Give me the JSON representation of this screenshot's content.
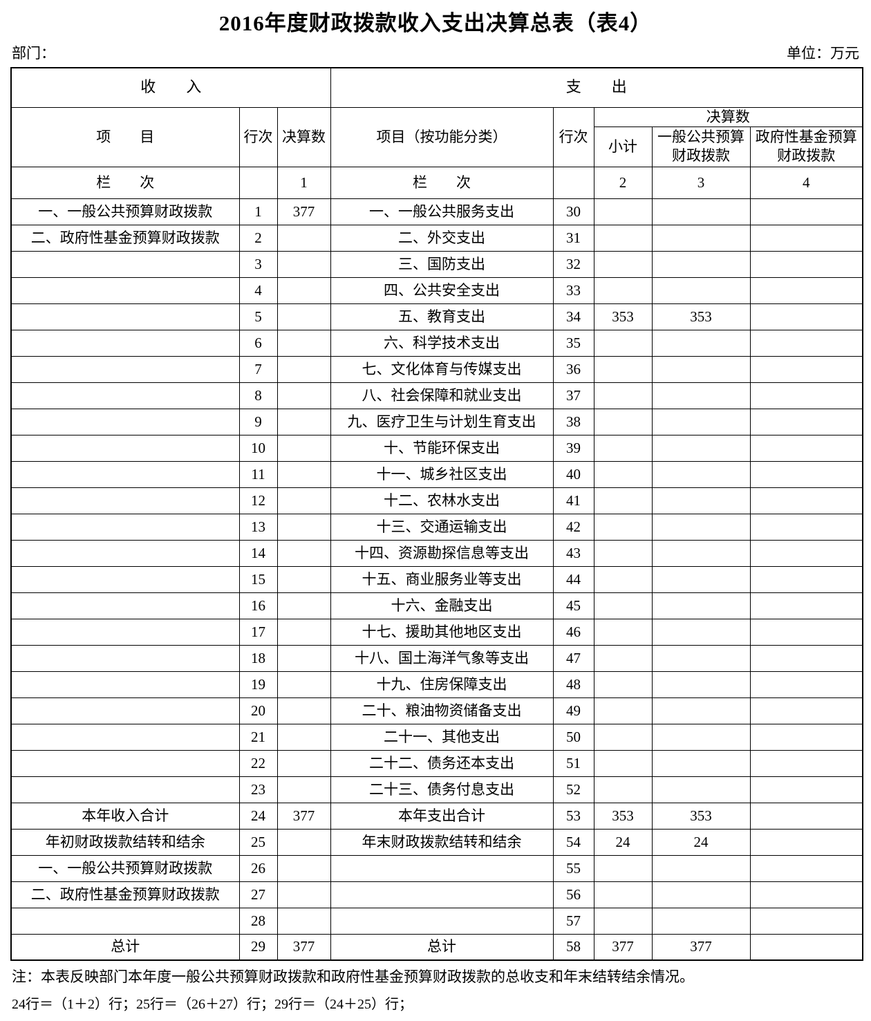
{
  "title": "2016年度财政拨款收入支出决算总表（表4）",
  "department_label": "部门：",
  "unit_label": "单位：万元",
  "table": {
    "income_header": "收　　入",
    "expense_header": "支　　出",
    "col_item": "项　　目",
    "col_row_no": "行次",
    "col_final": "决算数",
    "col_item_func": "项目（按功能分类）",
    "col_subtotal": "小计",
    "col_general": "一般公共预算财政拨款",
    "col_gov_fund": "政府性基金预算财政拨款",
    "lan_ci": "栏　　次",
    "col_nums": [
      "1",
      "2",
      "3",
      "4"
    ],
    "rows": [
      {
        "li": "一、一般公共预算财政拨款",
        "lr": "1",
        "lv": "377",
        "ri": "一、一般公共服务支出",
        "rr": "30",
        "v2": "",
        "v3": "",
        "v4": ""
      },
      {
        "li": "二、政府性基金预算财政拨款",
        "lr": "2",
        "lv": "",
        "ri": "二、外交支出",
        "rr": "31",
        "v2": "",
        "v3": "",
        "v4": ""
      },
      {
        "li": "",
        "lr": "3",
        "lv": "",
        "ri": "三、国防支出",
        "rr": "32",
        "v2": "",
        "v3": "",
        "v4": ""
      },
      {
        "li": "",
        "lr": "4",
        "lv": "",
        "ri": "四、公共安全支出",
        "rr": "33",
        "v2": "",
        "v3": "",
        "v4": ""
      },
      {
        "li": "",
        "lr": "5",
        "lv": "",
        "ri": "五、教育支出",
        "rr": "34",
        "v2": "353",
        "v3": "353",
        "v4": ""
      },
      {
        "li": "",
        "lr": "6",
        "lv": "",
        "ri": "六、科学技术支出",
        "rr": "35",
        "v2": "",
        "v3": "",
        "v4": ""
      },
      {
        "li": "",
        "lr": "7",
        "lv": "",
        "ri": "七、文化体育与传媒支出",
        "rr": "36",
        "v2": "",
        "v3": "",
        "v4": ""
      },
      {
        "li": "",
        "lr": "8",
        "lv": "",
        "ri": "八、社会保障和就业支出",
        "rr": "37",
        "v2": "",
        "v3": "",
        "v4": ""
      },
      {
        "li": "",
        "lr": "9",
        "lv": "",
        "ri": "九、医疗卫生与计划生育支出",
        "rr": "38",
        "v2": "",
        "v3": "",
        "v4": ""
      },
      {
        "li": "",
        "lr": "10",
        "lv": "",
        "ri": "十、节能环保支出",
        "rr": "39",
        "v2": "",
        "v3": "",
        "v4": ""
      },
      {
        "li": "",
        "lr": "11",
        "lv": "",
        "ri": "十一、城乡社区支出",
        "rr": "40",
        "v2": "",
        "v3": "",
        "v4": ""
      },
      {
        "li": "",
        "lr": "12",
        "lv": "",
        "ri": "十二、农林水支出",
        "rr": "41",
        "v2": "",
        "v3": "",
        "v4": ""
      },
      {
        "li": "",
        "lr": "13",
        "lv": "",
        "ri": "十三、交通运输支出",
        "rr": "42",
        "v2": "",
        "v3": "",
        "v4": ""
      },
      {
        "li": "",
        "lr": "14",
        "lv": "",
        "ri": "十四、资源勘探信息等支出",
        "rr": "43",
        "v2": "",
        "v3": "",
        "v4": ""
      },
      {
        "li": "",
        "lr": "15",
        "lv": "",
        "ri": "十五、商业服务业等支出",
        "rr": "44",
        "v2": "",
        "v3": "",
        "v4": ""
      },
      {
        "li": "",
        "lr": "16",
        "lv": "",
        "ri": "十六、金融支出",
        "rr": "45",
        "v2": "",
        "v3": "",
        "v4": ""
      },
      {
        "li": "",
        "lr": "17",
        "lv": "",
        "ri": "十七、援助其他地区支出",
        "rr": "46",
        "v2": "",
        "v3": "",
        "v4": ""
      },
      {
        "li": "",
        "lr": "18",
        "lv": "",
        "ri": "十八、国土海洋气象等支出",
        "rr": "47",
        "v2": "",
        "v3": "",
        "v4": ""
      },
      {
        "li": "",
        "lr": "19",
        "lv": "",
        "ri": "十九、住房保障支出",
        "rr": "48",
        "v2": "",
        "v3": "",
        "v4": ""
      },
      {
        "li": "",
        "lr": "20",
        "lv": "",
        "ri": "二十、粮油物资储备支出",
        "rr": "49",
        "v2": "",
        "v3": "",
        "v4": ""
      },
      {
        "li": "",
        "lr": "21",
        "lv": "",
        "ri": "二十一、其他支出",
        "rr": "50",
        "v2": "",
        "v3": "",
        "v4": ""
      },
      {
        "li": "",
        "lr": "22",
        "lv": "",
        "ri": "二十二、债务还本支出",
        "rr": "51",
        "v2": "",
        "v3": "",
        "v4": ""
      },
      {
        "li": "",
        "lr": "23",
        "lv": "",
        "ri": "二十三、债务付息支出",
        "rr": "52",
        "v2": "",
        "v3": "",
        "v4": ""
      },
      {
        "li": "本年收入合计",
        "lr": "24",
        "lv": "377",
        "ri": "本年支出合计",
        "rr": "53",
        "v2": "353",
        "v3": "353",
        "v4": "",
        "center": true
      },
      {
        "li": "年初财政拨款结转和结余",
        "lr": "25",
        "lv": "",
        "ri": "年末财政拨款结转和结余",
        "rr": "54",
        "v2": "24",
        "v3": "24",
        "v4": ""
      },
      {
        "li": "一、一般公共预算财政拨款",
        "lr": "26",
        "lv": "",
        "ri": "",
        "rr": "55",
        "v2": "",
        "v3": "",
        "v4": ""
      },
      {
        "li": "二、政府性基金预算财政拨款",
        "lr": "27",
        "lv": "",
        "ri": "",
        "rr": "56",
        "v2": "",
        "v3": "",
        "v4": ""
      },
      {
        "li": "",
        "lr": "28",
        "lv": "",
        "ri": "",
        "rr": "57",
        "v2": "",
        "v3": "",
        "v4": ""
      },
      {
        "li": "总计",
        "lr": "29",
        "lv": "377",
        "ri": "总计",
        "rr": "58",
        "v2": "377",
        "v3": "377",
        "v4": "",
        "center": true
      }
    ]
  },
  "notes": [
    "注：本表反映部门本年度一般公共预算财政拨款和政府性基金预算财政拨款的总收支和年末结转结余情况。",
    "24行＝（1＋2）行；25行＝（26＋27）行；29行＝（24＋25）行；"
  ]
}
